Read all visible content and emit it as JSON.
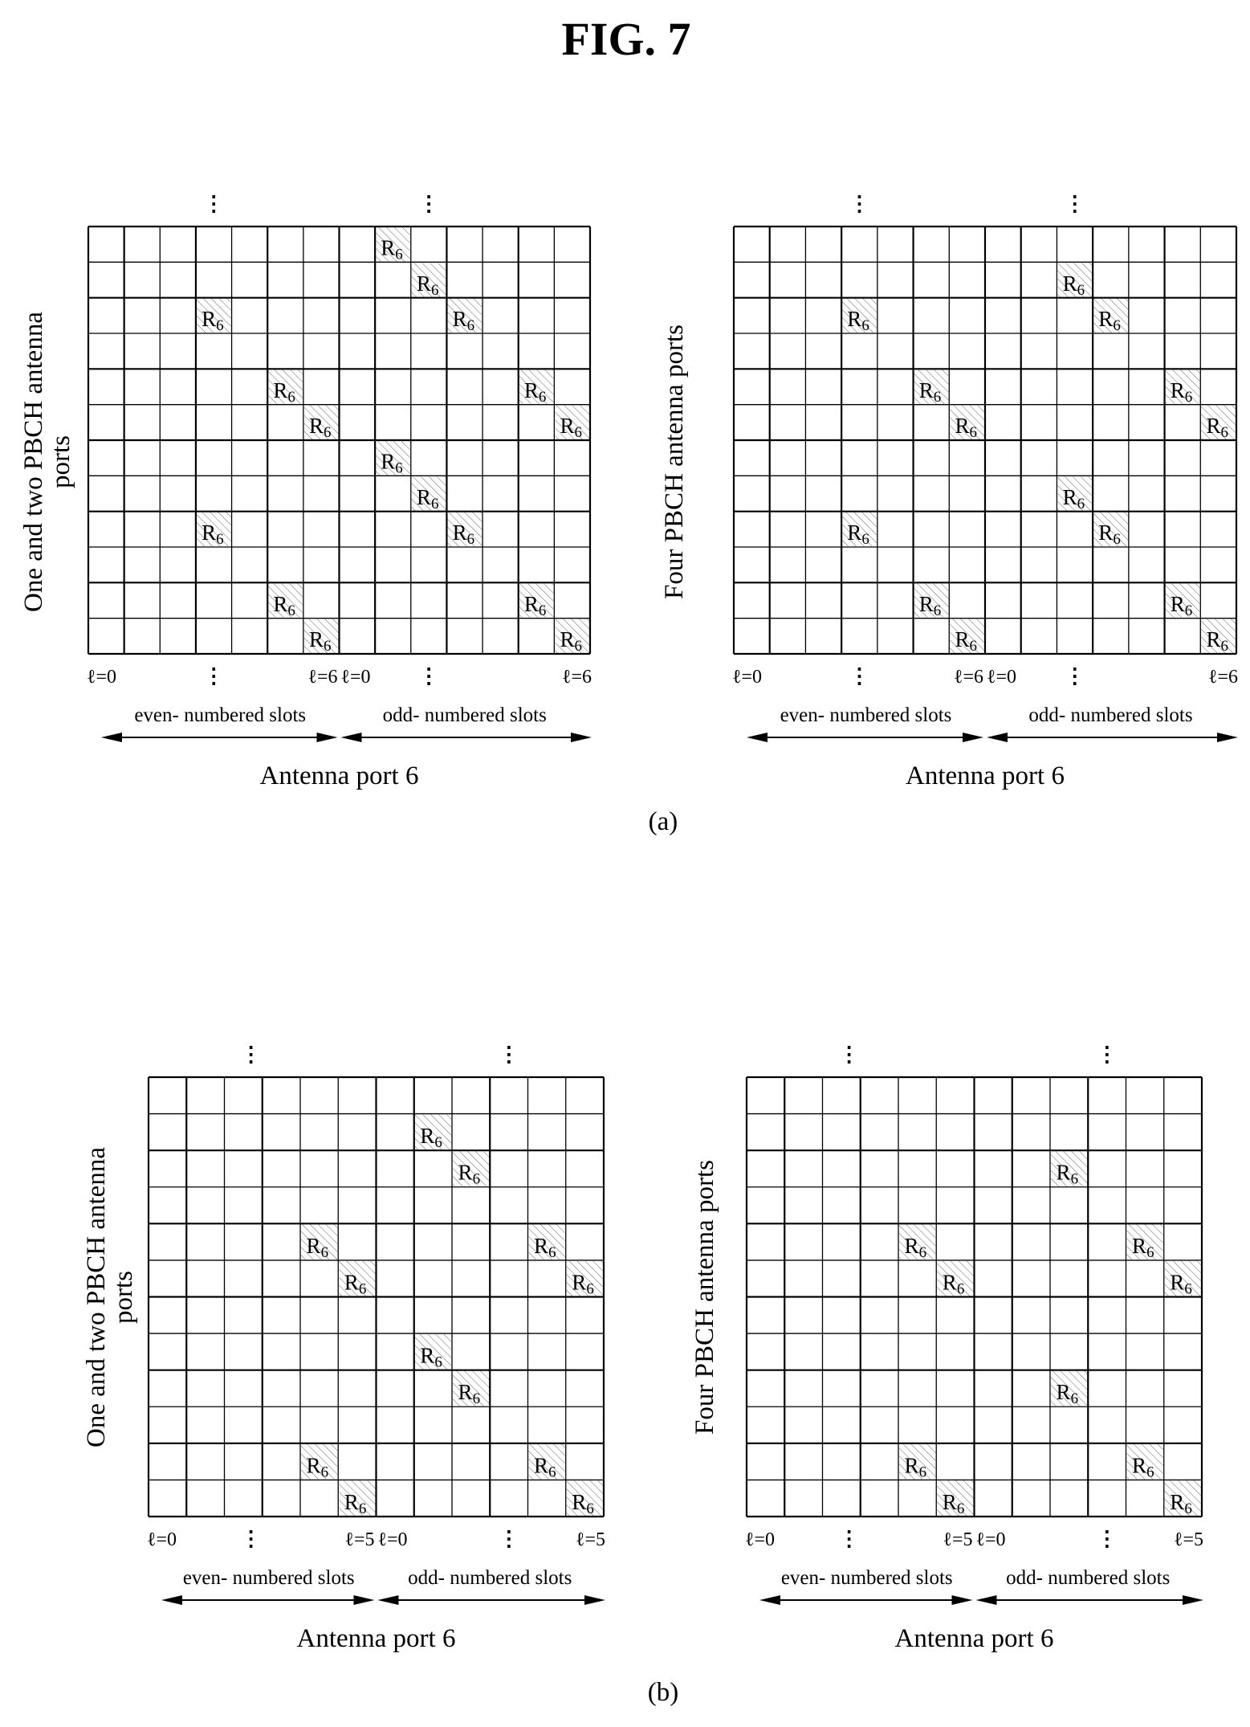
{
  "figure": {
    "title": "FIG. 7",
    "panel_a_label": "(a)",
    "panel_b_label": "(b)"
  },
  "rs_label": {
    "main": "R",
    "sub": "6"
  },
  "ellipsis": "⋮",
  "grids": [
    {
      "id": "a-left",
      "panel": "a",
      "side_label": [
        "One and two PBCH antenna",
        "ports"
      ],
      "rows": 12,
      "cols_per_slot": 7,
      "first_symbol_label": "ℓ=0",
      "last_symbol_label": "ℓ=6",
      "even_label": "even- numbered slots",
      "odd_label": "odd- numbered slots",
      "port_label": "Antenna port 6",
      "cells": [
        [
          0,
          8
        ],
        [
          1,
          9
        ],
        [
          2,
          3
        ],
        [
          2,
          10
        ],
        [
          4,
          5
        ],
        [
          4,
          12
        ],
        [
          5,
          6
        ],
        [
          5,
          13
        ],
        [
          6,
          8
        ],
        [
          7,
          9
        ],
        [
          8,
          3
        ],
        [
          8,
          10
        ],
        [
          10,
          5
        ],
        [
          10,
          12
        ],
        [
          11,
          6
        ],
        [
          11,
          13
        ]
      ]
    },
    {
      "id": "a-right",
      "panel": "a",
      "side_label": [
        "Four PBCH antenna ports"
      ],
      "rows": 12,
      "cols_per_slot": 7,
      "first_symbol_label": "ℓ=0",
      "last_symbol_label": "ℓ=6",
      "even_label": "even- numbered slots",
      "odd_label": "odd- numbered slots",
      "port_label": "Antenna port 6",
      "cells": [
        [
          1,
          9
        ],
        [
          2,
          3
        ],
        [
          2,
          10
        ],
        [
          4,
          5
        ],
        [
          4,
          12
        ],
        [
          5,
          6
        ],
        [
          5,
          13
        ],
        [
          7,
          9
        ],
        [
          8,
          3
        ],
        [
          8,
          10
        ],
        [
          10,
          5
        ],
        [
          10,
          12
        ],
        [
          11,
          6
        ],
        [
          11,
          13
        ]
      ]
    },
    {
      "id": "b-left",
      "panel": "b",
      "side_label": [
        "One and two PBCH antenna",
        "ports"
      ],
      "rows": 12,
      "cols_per_slot": 6,
      "first_symbol_label": "ℓ=0",
      "last_symbol_label": "ℓ=5",
      "even_label": "even- numbered slots",
      "odd_label": "odd- numbered slots",
      "port_label": "Antenna port 6",
      "cells": [
        [
          1,
          7
        ],
        [
          2,
          8
        ],
        [
          4,
          4
        ],
        [
          4,
          10
        ],
        [
          5,
          5
        ],
        [
          5,
          11
        ],
        [
          7,
          7
        ],
        [
          8,
          8
        ],
        [
          10,
          4
        ],
        [
          10,
          10
        ],
        [
          11,
          5
        ],
        [
          11,
          11
        ]
      ]
    },
    {
      "id": "b-right",
      "panel": "b",
      "side_label": [
        "Four PBCH antenna ports"
      ],
      "rows": 12,
      "cols_per_slot": 6,
      "first_symbol_label": "ℓ=0",
      "last_symbol_label": "ℓ=5",
      "even_label": "even- numbered slots",
      "odd_label": "odd- numbered slots",
      "port_label": "Antenna port 6",
      "cells": [
        [
          2,
          8
        ],
        [
          4,
          4
        ],
        [
          4,
          10
        ],
        [
          5,
          5
        ],
        [
          5,
          11
        ],
        [
          8,
          8
        ],
        [
          10,
          4
        ],
        [
          10,
          10
        ],
        [
          11,
          5
        ],
        [
          11,
          11
        ]
      ]
    }
  ]
}
